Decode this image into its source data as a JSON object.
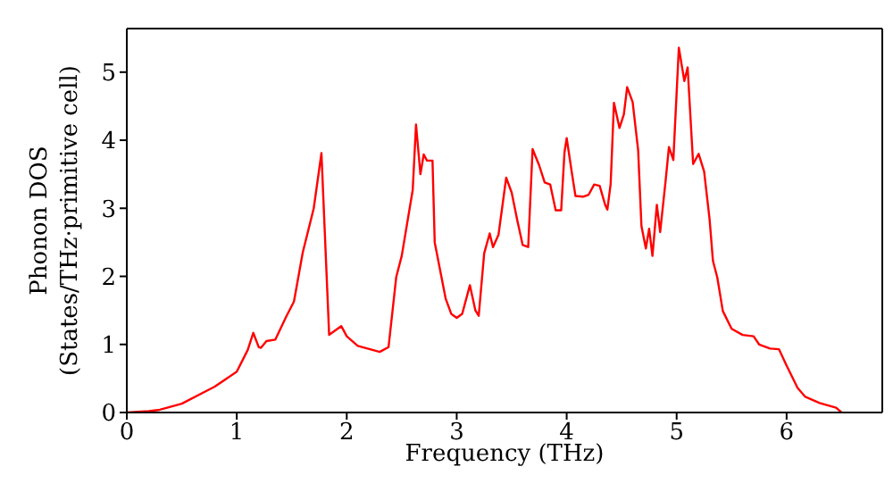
{
  "chart_data": {
    "type": "line",
    "xlabel": "Frequency (THz)",
    "ylabel": "Phonon DOS\n(States/THz·primitive cell)",
    "x": [
      0,
      0.2,
      0.3,
      0.5,
      0.8,
      1.0,
      1.1,
      1.15,
      1.2,
      1.22,
      1.27,
      1.35,
      1.45,
      1.52,
      1.6,
      1.7,
      1.77,
      1.84,
      1.95,
      2.0,
      2.1,
      2.3,
      2.38,
      2.45,
      2.5,
      2.6,
      2.63,
      2.67,
      2.7,
      2.73,
      2.78,
      2.8,
      2.9,
      2.95,
      3.0,
      3.05,
      3.12,
      3.17,
      3.2,
      3.25,
      3.3,
      3.33,
      3.38,
      3.45,
      3.5,
      3.55,
      3.6,
      3.65,
      3.69,
      3.75,
      3.8,
      3.85,
      3.9,
      3.95,
      3.98,
      4.0,
      4.05,
      4.08,
      4.15,
      4.2,
      4.25,
      4.3,
      4.35,
      4.37,
      4.4,
      4.43,
      4.48,
      4.52,
      4.55,
      4.6,
      4.65,
      4.68,
      4.72,
      4.75,
      4.78,
      4.82,
      4.85,
      4.9,
      4.93,
      4.97,
      5.02,
      5.07,
      5.1,
      5.15,
      5.2,
      5.25,
      5.3,
      5.33,
      5.37,
      5.42,
      5.5,
      5.6,
      5.7,
      5.75,
      5.85,
      5.93,
      6.0,
      6.1,
      6.17,
      6.3,
      6.45,
      6.5
    ],
    "series": [
      {
        "color": "#ff0000",
        "values": [
          0,
          0.02,
          0.04,
          0.13,
          0.38,
          0.6,
          0.92,
          1.17,
          0.96,
          0.95,
          1.05,
          1.07,
          1.41,
          1.63,
          2.35,
          3.0,
          3.81,
          1.14,
          1.27,
          1.12,
          0.98,
          0.89,
          0.96,
          1.99,
          2.3,
          3.27,
          4.23,
          3.5,
          3.79,
          3.7,
          3.7,
          2.5,
          1.67,
          1.45,
          1.39,
          1.45,
          1.87,
          1.5,
          1.42,
          2.34,
          2.63,
          2.43,
          2.61,
          3.45,
          3.23,
          2.83,
          2.46,
          2.43,
          3.87,
          3.63,
          3.38,
          3.35,
          2.97,
          2.97,
          3.82,
          4.03,
          3.49,
          3.18,
          3.17,
          3.2,
          3.35,
          3.33,
          3.05,
          2.98,
          3.36,
          4.55,
          4.18,
          4.38,
          4.78,
          4.56,
          3.85,
          2.74,
          2.41,
          2.7,
          2.3,
          3.05,
          2.65,
          3.41,
          3.9,
          3.71,
          5.36,
          4.87,
          5.07,
          3.65,
          3.8,
          3.54,
          2.83,
          2.23,
          1.98,
          1.49,
          1.23,
          1.14,
          1.12,
          1.0,
          0.94,
          0.93,
          0.69,
          0.36,
          0.23,
          0.14,
          0.07,
          0
        ]
      }
    ],
    "xlim": [
      0,
      6.87
    ],
    "xticks": [
      0,
      1,
      2,
      3,
      4,
      5,
      6
    ],
    "ylim": [
      0,
      5.64
    ],
    "yticks": [
      0,
      1,
      2,
      3,
      4,
      5
    ],
    "grid": false,
    "marker": "none",
    "line_style": "solid"
  }
}
